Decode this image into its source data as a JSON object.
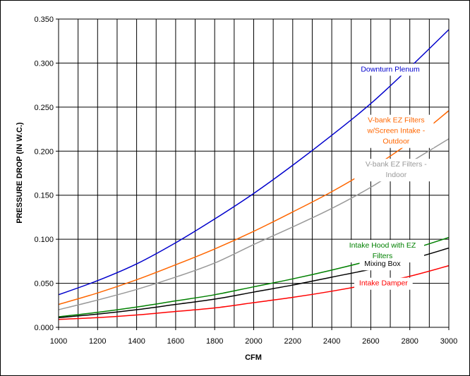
{
  "chart_data": {
    "type": "line",
    "title": "",
    "xlabel": "CFM",
    "ylabel": "PRESSURE DROP (IN W.C.)",
    "xlim": [
      1000,
      3000
    ],
    "ylim": [
      0,
      0.35
    ],
    "grid": true,
    "x_ticks": [
      1000,
      1200,
      1400,
      1600,
      1800,
      2000,
      2200,
      2400,
      2600,
      2800,
      3000
    ],
    "x_tick_labels": [
      "1000",
      "1200",
      "1400",
      "1600",
      "1800",
      "2000",
      "2200",
      "2400",
      "2600",
      "2800",
      "3000"
    ],
    "y_ticks": [
      0,
      0.05,
      0.1,
      0.15,
      0.2,
      0.25,
      0.3,
      0.35
    ],
    "y_tick_labels": [
      "0.000",
      "0.050",
      "0.100",
      "0.150",
      "0.200",
      "0.250",
      "0.300",
      "0.350"
    ],
    "x": [
      1000,
      1200,
      1400,
      1600,
      1800,
      2000,
      2200,
      2400,
      2600,
      2800,
      3000
    ],
    "series": [
      {
        "name": "Downturn Plenum",
        "label_lines": [
          "Downturn Plenum"
        ],
        "label_anchor": [
          2700,
          0.2905
        ],
        "color": "#0000cc",
        "values": [
          0.037,
          0.053,
          0.072,
          0.096,
          0.123,
          0.152,
          0.184,
          0.218,
          0.254,
          0.295,
          0.338
        ]
      },
      {
        "name": "V-bank EZ Filters w/Screen Intake - Outdoor",
        "label_lines": [
          "V-bank EZ Filters",
          "w/Screen Intake -",
          "Outdoor"
        ],
        "label_anchor": [
          2730,
          0.2325
        ],
        "color": "#ff6600",
        "values": [
          0.026,
          0.039,
          0.054,
          0.071,
          0.089,
          0.109,
          0.131,
          0.154,
          0.18,
          0.21,
          0.246
        ]
      },
      {
        "name": "V-bank EZ Filters - Indoor",
        "label_lines": [
          "V-bank EZ Filters -",
          "Indoor"
        ],
        "label_anchor": [
          2730,
          0.1825
        ],
        "color": "#999999",
        "values": [
          0.02,
          0.031,
          0.043,
          0.057,
          0.073,
          0.094,
          0.114,
          0.135,
          0.159,
          0.187,
          0.214
        ]
      },
      {
        "name": "Intake Hood with EZ Filters",
        "label_lines": [
          "Intake Hood with EZ",
          "Filters"
        ],
        "label_anchor": [
          2660,
          0.0905
        ],
        "color": "#008000",
        "values": [
          0.012,
          0.017,
          0.023,
          0.03,
          0.037,
          0.046,
          0.055,
          0.065,
          0.076,
          0.088,
          0.102
        ]
      },
      {
        "name": "Mixing Box",
        "label_lines": [
          "Mixing Box"
        ],
        "label_anchor": [
          2660,
          0.0695
        ],
        "color": "#000000",
        "values": [
          0.011,
          0.015,
          0.02,
          0.026,
          0.032,
          0.04,
          0.048,
          0.057,
          0.066,
          0.077,
          0.09
        ]
      },
      {
        "name": "Intake Damper",
        "label_lines": [
          "Intake Damper"
        ],
        "label_anchor": [
          2665,
          0.0475
        ],
        "color": "#ff0000",
        "values": [
          0.009,
          0.011,
          0.014,
          0.018,
          0.022,
          0.028,
          0.034,
          0.041,
          0.049,
          0.058,
          0.07
        ]
      }
    ]
  }
}
